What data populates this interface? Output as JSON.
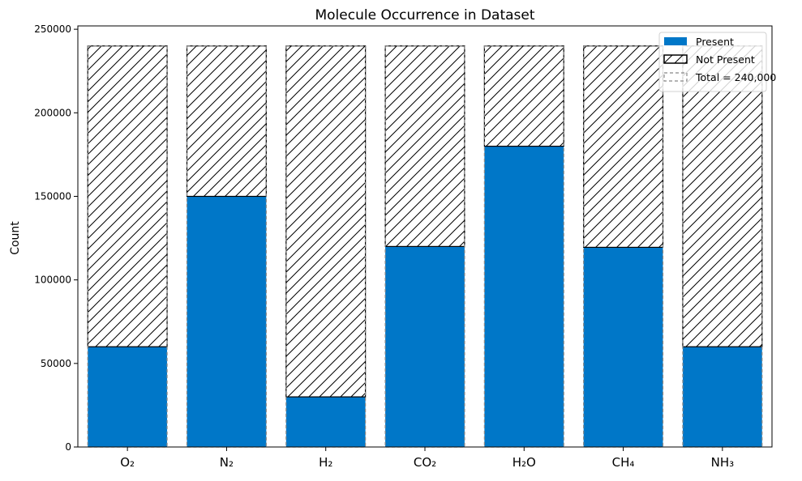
{
  "chart_data": {
    "type": "bar",
    "title": "Molecule Occurrence in Dataset",
    "xlabel": "",
    "ylabel": "Count",
    "categories": [
      "O₂",
      "N₂",
      "H₂",
      "CO₂",
      "H₂O",
      "CH₄",
      "NH₃"
    ],
    "series": [
      {
        "name": "Present",
        "values": [
          60000,
          150000,
          30000,
          120000,
          180000,
          119500,
          60000
        ],
        "color": "#0077c8"
      },
      {
        "name": "Not Present",
        "values": [
          180000,
          90000,
          210000,
          120000,
          60000,
          120500,
          180000
        ],
        "pattern": "hatch"
      }
    ],
    "total": 240000,
    "total_label": "Total = 240,000",
    "ylim": [
      0,
      252000
    ],
    "yticks": [
      0,
      50000,
      100000,
      150000,
      200000,
      250000
    ],
    "ytick_labels": [
      "0",
      "50000",
      "100000",
      "150000",
      "200000",
      "250000"
    ],
    "legend": {
      "position": "top-right",
      "entries": [
        "Present",
        "Not Present",
        "Total = 240,000"
      ]
    },
    "grid": false
  }
}
